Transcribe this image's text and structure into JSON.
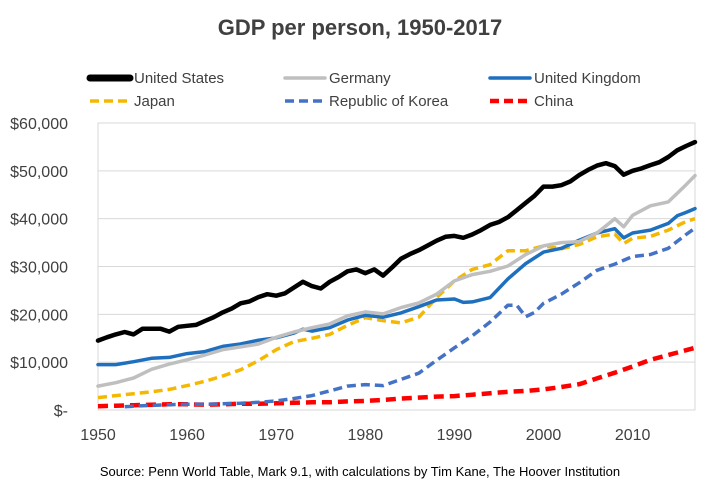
{
  "chart_data": {
    "type": "line",
    "title": "GDP per person, 1950-2017",
    "source": "Source: Penn World Table, Mark 9.1,  with calculations by Tim Kane, The Hoover Institution",
    "xlim": [
      1950,
      2017
    ],
    "ylim": [
      0,
      60000
    ],
    "x_ticks": [
      1950,
      1960,
      1970,
      1980,
      1990,
      2000,
      2010
    ],
    "y_ticks": [
      0,
      10000,
      20000,
      30000,
      40000,
      50000,
      60000
    ],
    "y_tick_labels": [
      "$-",
      "$10,000",
      "$20,000",
      "$30,000",
      "$40,000",
      "$50,000",
      "$60,000"
    ],
    "legend_position": "top",
    "series": [
      {
        "name": "United States",
        "color": "#000000",
        "dashed": false,
        "width": "thick",
        "x": [
          1950,
          1951,
          1952,
          1953,
          1954,
          1955,
          1956,
          1957,
          1958,
          1959,
          1960,
          1961,
          1962,
          1963,
          1964,
          1965,
          1966,
          1967,
          1968,
          1969,
          1970,
          1971,
          1972,
          1973,
          1974,
          1975,
          1976,
          1977,
          1978,
          1979,
          1980,
          1981,
          1982,
          1983,
          1984,
          1985,
          1986,
          1987,
          1988,
          1989,
          1990,
          1991,
          1992,
          1993,
          1994,
          1995,
          1996,
          1997,
          1998,
          1999,
          2000,
          2001,
          2002,
          2003,
          2004,
          2005,
          2006,
          2007,
          2008,
          2009,
          2010,
          2011,
          2012,
          2013,
          2014,
          2015,
          2016,
          2017
        ],
        "values": [
          14500,
          15200,
          15800,
          16300,
          15800,
          17000,
          17000,
          17000,
          16400,
          17400,
          17600,
          17800,
          18600,
          19400,
          20400,
          21200,
          22300,
          22700,
          23600,
          24200,
          23900,
          24400,
          25600,
          26800,
          25900,
          25400,
          26800,
          27800,
          29000,
          29400,
          28600,
          29400,
          28100,
          29800,
          31600,
          32600,
          33400,
          34400,
          35400,
          36200,
          36400,
          36000,
          36700,
          37600,
          38700,
          39300,
          40300,
          41800,
          43300,
          44800,
          46700,
          46700,
          47000,
          47800,
          49100,
          50200,
          51100,
          51600,
          51000,
          49200,
          50000,
          50500,
          51200,
          51800,
          52900,
          54300,
          55200,
          56000
        ]
      },
      {
        "name": "Germany",
        "color": "#bfbfbf",
        "dashed": false,
        "width": "normal",
        "x": [
          1950,
          1952,
          1954,
          1956,
          1958,
          1960,
          1962,
          1964,
          1966,
          1968,
          1970,
          1972,
          1974,
          1976,
          1978,
          1980,
          1982,
          1984,
          1986,
          1988,
          1990,
          1992,
          1994,
          1996,
          1998,
          2000,
          2002,
          2004,
          2006,
          2008,
          2009,
          2010,
          2012,
          2014,
          2016,
          2017
        ],
        "values": [
          5000,
          5700,
          6700,
          8500,
          9600,
          10500,
          11500,
          12600,
          13200,
          13800,
          15200,
          16300,
          17200,
          18000,
          19700,
          20500,
          20100,
          21400,
          22400,
          24200,
          27000,
          28300,
          29000,
          30100,
          32500,
          34300,
          35000,
          35200,
          37000,
          40000,
          38300,
          40700,
          42700,
          43500,
          47100,
          49000
        ]
      },
      {
        "name": "United Kingdom",
        "color": "#1f6fbf",
        "dashed": false,
        "width": "normal",
        "x": [
          1950,
          1952,
          1954,
          1956,
          1958,
          1960,
          1962,
          1964,
          1966,
          1968,
          1970,
          1972,
          1973,
          1974,
          1976,
          1978,
          1980,
          1982,
          1984,
          1986,
          1988,
          1990,
          1991,
          1992,
          1994,
          1996,
          1998,
          2000,
          2002,
          2004,
          2006,
          2008,
          2009,
          2010,
          2012,
          2014,
          2015,
          2016,
          2017
        ],
        "values": [
          9500,
          9500,
          10100,
          10800,
          11000,
          11800,
          12200,
          13300,
          13800,
          14600,
          15100,
          16100,
          16900,
          16500,
          17200,
          18800,
          19800,
          19400,
          20300,
          21600,
          23000,
          23200,
          22500,
          22600,
          23500,
          27400,
          30600,
          33000,
          33800,
          35500,
          37000,
          37900,
          36000,
          37000,
          37600,
          39000,
          40600,
          41300,
          42100
        ]
      },
      {
        "name": "Japan",
        "color": "#f5b800",
        "dashed": true,
        "width": "normal",
        "x": [
          1950,
          1952,
          1954,
          1956,
          1958,
          1960,
          1962,
          1964,
          1966,
          1968,
          1970,
          1972,
          1974,
          1976,
          1978,
          1980,
          1982,
          1984,
          1986,
          1988,
          1990,
          1992,
          1994,
          1996,
          1998,
          2000,
          2002,
          2004,
          2006,
          2008,
          2009,
          2010,
          2012,
          2014,
          2016,
          2017
        ],
        "values": [
          2600,
          3000,
          3400,
          3800,
          4300,
          5100,
          6000,
          7100,
          8400,
          10300,
          12600,
          14300,
          15000,
          15800,
          17700,
          19300,
          18700,
          18200,
          19400,
          23500,
          27000,
          29400,
          30400,
          33300,
          33300,
          34300,
          33700,
          34600,
          36200,
          36800,
          34800,
          35900,
          36300,
          37600,
          39400,
          40000
        ]
      },
      {
        "name": "Republic of Korea",
        "color": "#4472c4",
        "dashed": true,
        "width": "normal",
        "x": [
          1953,
          1955,
          1958,
          1960,
          1962,
          1964,
          1966,
          1968,
          1970,
          1972,
          1974,
          1976,
          1978,
          1980,
          1982,
          1984,
          1986,
          1988,
          1990,
          1992,
          1994,
          1996,
          1997,
          1998,
          1999,
          2000,
          2002,
          2004,
          2006,
          2008,
          2010,
          2012,
          2014,
          2016,
          2017
        ],
        "values": [
          700,
          900,
          1100,
          1200,
          1200,
          1300,
          1400,
          1600,
          1900,
          2400,
          3000,
          4000,
          5000,
          5300,
          5100,
          6400,
          7700,
          10400,
          13000,
          15500,
          18400,
          21900,
          21900,
          19500,
          20400,
          22300,
          24200,
          26600,
          29200,
          30500,
          32100,
          32500,
          33800,
          36700,
          38000
        ]
      },
      {
        "name": "China",
        "color": "#ff0000",
        "dashed": true,
        "width": "thick",
        "x": [
          1950,
          1952,
          1954,
          1956,
          1958,
          1960,
          1962,
          1964,
          1966,
          1968,
          1970,
          1972,
          1974,
          1976,
          1978,
          1980,
          1982,
          1984,
          1986,
          1988,
          1990,
          1992,
          1994,
          1996,
          1998,
          2000,
          2002,
          2004,
          2006,
          2008,
          2010,
          2012,
          2014,
          2016,
          2017
        ],
        "values": [
          800,
          900,
          1000,
          1100,
          1200,
          1200,
          1100,
          1200,
          1300,
          1300,
          1400,
          1500,
          1600,
          1600,
          1800,
          1900,
          2100,
          2400,
          2600,
          2800,
          2900,
          3200,
          3500,
          3800,
          4000,
          4300,
          4800,
          5400,
          6600,
          7800,
          9100,
          10500,
          11500,
          12500,
          13000
        ]
      }
    ]
  }
}
